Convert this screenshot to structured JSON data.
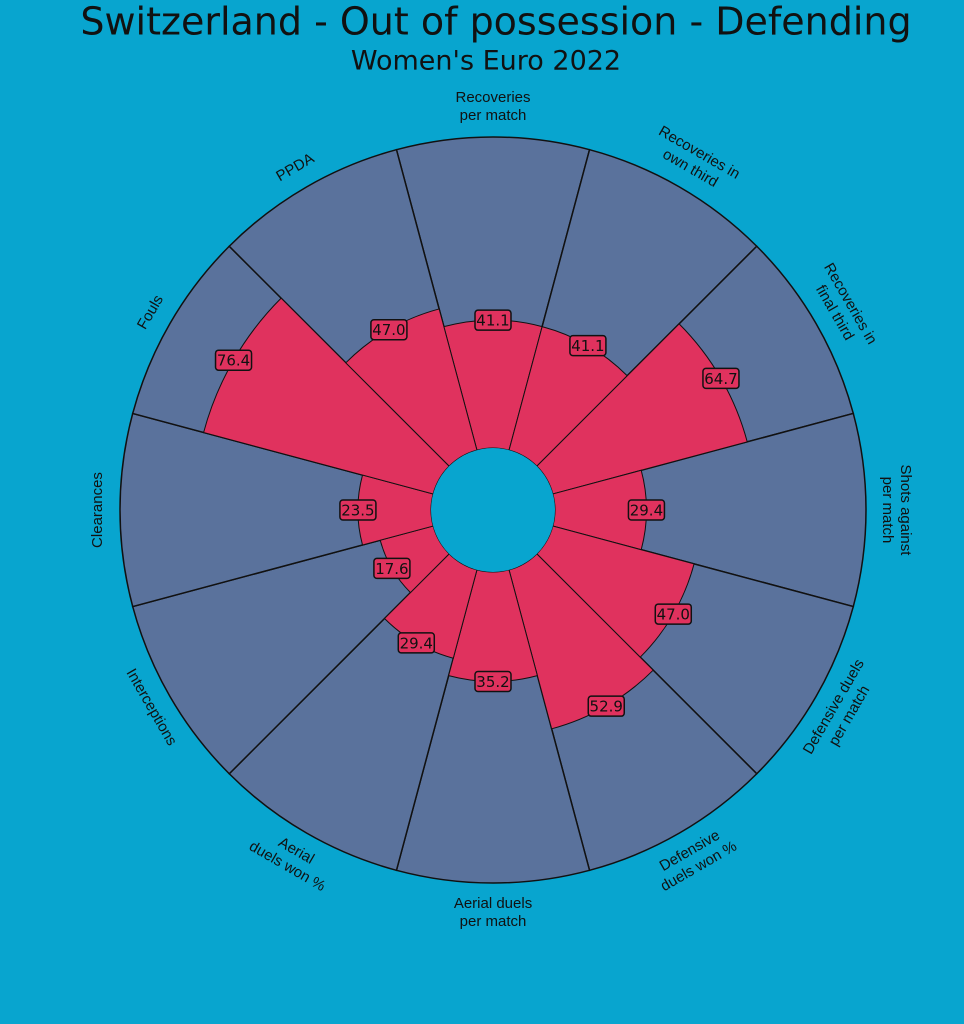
{
  "chart_data": {
    "type": "pizza",
    "title": "Switzerland - Out of possession - Defending",
    "subtitle": "Women's Euro 2022",
    "categories": [
      [
        "Recoveries",
        "per match"
      ],
      [
        "Recoveries in",
        "own third"
      ],
      [
        "Recoveries in",
        "final third"
      ],
      [
        "Shots against",
        "per match"
      ],
      [
        "Defensive duels",
        "per match"
      ],
      [
        "Defensive",
        "duels won %"
      ],
      [
        "Aerial duels",
        "per match"
      ],
      [
        "Aerial",
        "duels won %"
      ],
      [
        "Interceptions"
      ],
      [
        "Clearances"
      ],
      [
        "Fouls"
      ],
      [
        "PPDA"
      ]
    ],
    "values": [
      41.1,
      41.1,
      64.7,
      29.4,
      47.0,
      52.9,
      35.2,
      29.4,
      17.6,
      23.5,
      76.4,
      47.0
    ],
    "value_labels": [
      "41.1",
      "41.1",
      "64.7",
      "29.4",
      "47.0",
      "52.9",
      "35.2",
      "29.4",
      "17.6",
      "23.5",
      "76.4",
      "47.0"
    ],
    "ylim": [
      0,
      100
    ],
    "color": "#e0325e",
    "slice_color": "#5a729c"
  }
}
